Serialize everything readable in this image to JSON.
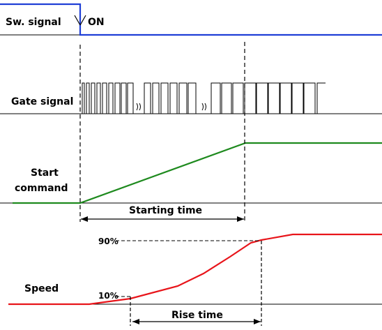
{
  "labels": {
    "sw_signal": "Sw. signal",
    "on": "ON",
    "gate_signal": "Gate signal",
    "start_command_line1": "Start",
    "start_command_line2": "command",
    "starting_time": "Starting time",
    "speed": "Speed",
    "pct90": "90%",
    "pct10": "10%",
    "rise_time": "Rise time"
  },
  "colors": {
    "switch": "#1f3fd6",
    "start_command": "#1e8a1e",
    "speed": "#e8141a",
    "axis": "#000000"
  }
}
